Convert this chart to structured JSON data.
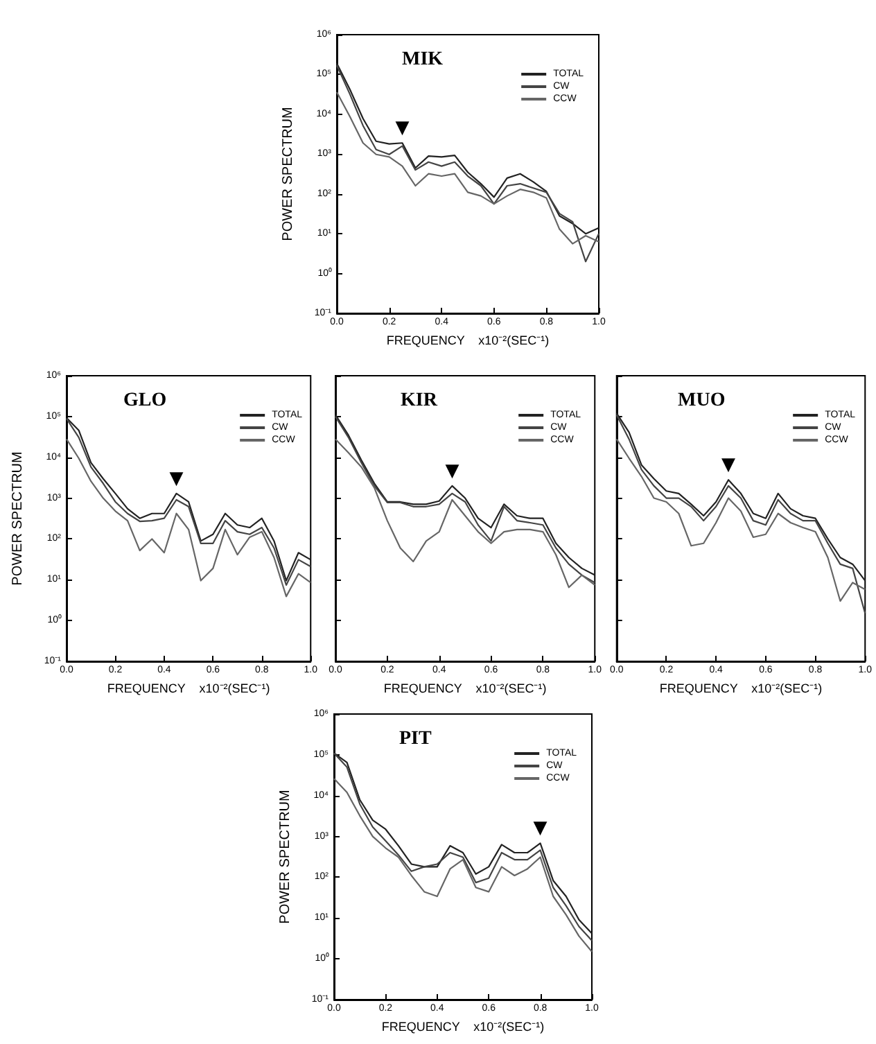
{
  "chart_data": [
    {
      "type": "line",
      "title": "MIK",
      "xlabel": "FREQUENCY    x10⁻²(SEC⁻¹)",
      "ylabel": "POWER SPECTRUM",
      "log": "y",
      "legend": "top right",
      "x": [
        0,
        0.05,
        0.1,
        0.15,
        0.2,
        0.25,
        0.3,
        0.35,
        0.4,
        0.45,
        0.5,
        0.55,
        0.6,
        0.65,
        0.7,
        0.75,
        0.8,
        0.85,
        0.9,
        0.95,
        1.0
      ],
      "xlim": [
        0,
        1
      ],
      "ylim": [
        0.1,
        1000000
      ],
      "xticks": [
        {
          "value": 0,
          "label": "0.0"
        },
        {
          "value": 0.2,
          "label": "0.2"
        },
        {
          "value": 0.4,
          "label": "0.4"
        },
        {
          "value": 0.6,
          "label": "0.6"
        },
        {
          "value": 0.8,
          "label": "0.8"
        },
        {
          "value": 1,
          "label": "1.0"
        }
      ],
      "yticks": [
        {
          "value": 0.1,
          "label": "10⁻¹"
        },
        {
          "value": 1,
          "label": "10⁰"
        },
        {
          "value": 10,
          "label": "10¹"
        },
        {
          "value": 100,
          "label": "10²"
        },
        {
          "value": 1000,
          "label": "10³"
        },
        {
          "value": 10000,
          "label": "10⁴"
        },
        {
          "value": 100000,
          "label": "10⁵"
        },
        {
          "value": 1000000,
          "label": "10⁶"
        }
      ],
      "annotations": [
        {
          "text": "▼",
          "x": 0.25,
          "y": 1900
        }
      ],
      "series": [
        {
          "name": "TOTAL",
          "color": "#222222",
          "values": [
            190000,
            42000,
            7800,
            2100,
            1800,
            1900,
            450,
            890,
            850,
            930,
            350,
            180,
            83,
            250,
            320,
            200,
            115,
            28,
            18,
            10,
            14
          ]
        },
        {
          "name": "CW",
          "color": "#444444",
          "values": [
            170000,
            32000,
            5200,
            1300,
            980,
            1600,
            400,
            630,
            500,
            630,
            280,
            160,
            56,
            160,
            180,
            140,
            110,
            32,
            20,
            2,
            10
          ]
        },
        {
          "name": "CCW",
          "color": "#666666",
          "values": [
            36000,
            8700,
            1900,
            980,
            850,
            500,
            160,
            320,
            280,
            320,
            110,
            89,
            56,
            89,
            130,
            110,
            79,
            13,
            5.6,
            8.9,
            6.3
          ]
        }
      ]
    },
    {
      "type": "line",
      "title": "GLO",
      "xlabel": "FREQUENCY    x10⁻²(SEC⁻¹)",
      "ylabel": "POWER SPECTRUM",
      "log": "y",
      "legend": "top right",
      "x": [
        0,
        0.05,
        0.1,
        0.15,
        0.2,
        0.25,
        0.3,
        0.35,
        0.4,
        0.45,
        0.5,
        0.55,
        0.6,
        0.65,
        0.7,
        0.75,
        0.8,
        0.85,
        0.9,
        0.95,
        1.0
      ],
      "xlim": [
        0,
        1
      ],
      "ylim": [
        0.1,
        1000000
      ],
      "xticks": [
        {
          "value": 0,
          "label": "0.0"
        },
        {
          "value": 0.2,
          "label": "0.2"
        },
        {
          "value": 0.4,
          "label": "0.4"
        },
        {
          "value": 0.6,
          "label": "0.6"
        },
        {
          "value": 0.8,
          "label": "0.8"
        },
        {
          "value": 1,
          "label": "1.0"
        }
      ],
      "yticks": [
        {
          "value": 0.1,
          "label": "10⁻¹"
        },
        {
          "value": 1,
          "label": "10⁰"
        },
        {
          "value": 10,
          "label": "10¹"
        },
        {
          "value": 100,
          "label": "10²"
        },
        {
          "value": 1000,
          "label": "10³"
        },
        {
          "value": 10000,
          "label": "10⁴"
        },
        {
          "value": 100000,
          "label": "10⁵"
        },
        {
          "value": 1000000,
          "label": "10⁶"
        }
      ],
      "annotations": [
        {
          "text": "▼",
          "x": 0.45,
          "y": 1300
        }
      ],
      "series": [
        {
          "name": "TOTAL",
          "color": "#222222",
          "values": [
            93000,
            46000,
            7400,
            3000,
            1300,
            550,
            320,
            420,
            420,
            1300,
            810,
            89,
            130,
            420,
            220,
            190,
            320,
            89,
            9.5,
            46,
            31
          ]
        },
        {
          "name": "CW",
          "color": "#444444",
          "values": [
            89000,
            31000,
            5800,
            2300,
            810,
            420,
            270,
            280,
            320,
            910,
            620,
            78,
            78,
            280,
            150,
            130,
            190,
            60,
            7.4,
            31,
            21
          ]
        },
        {
          "name": "CCW",
          "color": "#666666",
          "values": [
            28000,
            9500,
            2600,
            1000,
            480,
            280,
            52,
            100,
            46,
            420,
            170,
            9.5,
            19,
            170,
            41,
            110,
            150,
            35,
            3.9,
            14,
            8.5
          ]
        }
      ]
    },
    {
      "type": "line",
      "title": "KIR",
      "xlabel": "FREQUENCY    x10⁻²(SEC⁻¹)",
      "log": "y",
      "legend": "top right",
      "tick_labels": "x",
      "x": [
        0,
        0.05,
        0.1,
        0.15,
        0.2,
        0.25,
        0.3,
        0.35,
        0.4,
        0.45,
        0.5,
        0.55,
        0.6,
        0.65,
        0.7,
        0.75,
        0.8,
        0.85,
        0.9,
        0.95,
        1.0
      ],
      "xlim": [
        0,
        1
      ],
      "ylim": [
        0.1,
        1000000
      ],
      "xticks": [
        {
          "value": 0,
          "label": "0.0"
        },
        {
          "value": 0.2,
          "label": "0.2"
        },
        {
          "value": 0.4,
          "label": "0.4"
        },
        {
          "value": 0.6,
          "label": "0.6"
        },
        {
          "value": 0.8,
          "label": "0.8"
        },
        {
          "value": 1,
          "label": "1.0"
        }
      ],
      "yticks": [
        {
          "value": 0.1,
          "label": null
        },
        {
          "value": 1,
          "label": null
        },
        {
          "value": 10,
          "label": null
        },
        {
          "value": 100,
          "label": null
        },
        {
          "value": 1000,
          "label": null
        },
        {
          "value": 10000,
          "label": null
        },
        {
          "value": 100000,
          "label": null
        },
        {
          "value": 1000000,
          "label": null
        }
      ],
      "annotations": [
        {
          "text": "▼",
          "x": 0.45,
          "y": 2000
        }
      ],
      "series": [
        {
          "name": "TOTAL",
          "color": "#222222",
          "values": [
            110000,
            35000,
            8500,
            2300,
            810,
            810,
            710,
            710,
            850,
            2000,
            1000,
            320,
            190,
            710,
            370,
            320,
            320,
            78,
            35,
            19,
            13
          ]
        },
        {
          "name": "CW",
          "color": "#444444",
          "values": [
            100000,
            31000,
            7400,
            2000,
            780,
            780,
            620,
            620,
            710,
            1300,
            810,
            220,
            89,
            620,
            280,
            250,
            220,
            60,
            24,
            13,
            8.5
          ]
        },
        {
          "name": "CCW",
          "color": "#666666",
          "values": [
            28000,
            13000,
            5800,
            1800,
            280,
            60,
            28,
            89,
            150,
            910,
            370,
            150,
            78,
            150,
            170,
            170,
            150,
            41,
            6.5,
            13,
            7.4
          ]
        }
      ]
    },
    {
      "type": "line",
      "title": "MUO",
      "xlabel": "FREQUENCY    x10⁻²(SEC⁻¹)",
      "log": "y",
      "legend": "top right",
      "tick_labels": "x",
      "x": [
        0,
        0.05,
        0.1,
        0.15,
        0.2,
        0.25,
        0.3,
        0.35,
        0.4,
        0.45,
        0.5,
        0.55,
        0.6,
        0.65,
        0.7,
        0.75,
        0.8,
        0.85,
        0.9,
        0.95,
        1.0
      ],
      "xlim": [
        0,
        1
      ],
      "ylim": [
        0.1,
        1000000
      ],
      "xticks": [
        {
          "value": 0,
          "label": "0.0"
        },
        {
          "value": 0.2,
          "label": "0.2"
        },
        {
          "value": 0.4,
          "label": "0.4"
        },
        {
          "value": 0.6,
          "label": "0.6"
        },
        {
          "value": 0.8,
          "label": "0.8"
        },
        {
          "value": 1,
          "label": "1.0"
        }
      ],
      "yticks": [
        {
          "value": 0.1,
          "label": null
        },
        {
          "value": 1,
          "label": null
        },
        {
          "value": 10,
          "label": null
        },
        {
          "value": 100,
          "label": null
        },
        {
          "value": 1000,
          "label": null
        },
        {
          "value": 10000,
          "label": null
        },
        {
          "value": 100000,
          "label": null
        },
        {
          "value": 1000000,
          "label": null
        }
      ],
      "annotations": [
        {
          "text": "▼",
          "x": 0.45,
          "y": 2800
        }
      ],
      "series": [
        {
          "name": "TOTAL",
          "color": "#222222",
          "values": [
            120000,
            41000,
            6500,
            3000,
            1500,
            1300,
            710,
            370,
            810,
            2800,
            1300,
            420,
            320,
            1300,
            550,
            370,
            320,
            100,
            35,
            24,
            9.5
          ]
        },
        {
          "name": "CW",
          "color": "#444444",
          "values": [
            110000,
            28000,
            5000,
            2000,
            1000,
            1000,
            620,
            280,
            620,
            2000,
            1000,
            280,
            220,
            910,
            420,
            280,
            280,
            78,
            24,
            19,
            1.5
          ]
        },
        {
          "name": "CCW",
          "color": "#666666",
          "values": [
            28000,
            9500,
            3400,
            1000,
            810,
            420,
            68,
            78,
            250,
            1000,
            480,
            110,
            130,
            420,
            250,
            190,
            150,
            35,
            3,
            8.5,
            5.8
          ]
        }
      ]
    },
    {
      "type": "line",
      "title": "PIT",
      "xlabel": "FREQUENCY    x10⁻²(SEC⁻¹)",
      "ylabel": "POWER SPECTRUM",
      "log": "y",
      "legend": "top right",
      "x": [
        0,
        0.05,
        0.1,
        0.15,
        0.2,
        0.25,
        0.3,
        0.35,
        0.4,
        0.45,
        0.5,
        0.55,
        0.6,
        0.65,
        0.7,
        0.75,
        0.8,
        0.85,
        0.9,
        0.95,
        1.0
      ],
      "xlim": [
        0,
        1
      ],
      "ylim": [
        0.1,
        1000000
      ],
      "xticks": [
        {
          "value": 0,
          "label": "0.0"
        },
        {
          "value": 0.2,
          "label": "0.2"
        },
        {
          "value": 0.4,
          "label": "0.4"
        },
        {
          "value": 0.6,
          "label": "0.6"
        },
        {
          "value": 0.8,
          "label": "0.8"
        },
        {
          "value": 1,
          "label": "1.0"
        }
      ],
      "yticks": [
        {
          "value": 0.1,
          "label": "10⁻¹"
        },
        {
          "value": 1,
          "label": "10⁰"
        },
        {
          "value": 10,
          "label": "10¹"
        },
        {
          "value": 100,
          "label": "10²"
        },
        {
          "value": 1000,
          "label": "10³"
        },
        {
          "value": 10000,
          "label": "10⁴"
        },
        {
          "value": 100000,
          "label": "10⁵"
        },
        {
          "value": 1000000,
          "label": "10⁶"
        }
      ],
      "annotations": [
        {
          "text": "▼",
          "x": 0.8,
          "y": 680
        }
      ],
      "series": [
        {
          "name": "TOTAL",
          "color": "#222222",
          "values": [
            110000,
            65000,
            7900,
            2500,
            1500,
            590,
            210,
            180,
            180,
            590,
            400,
            120,
            180,
            630,
            400,
            400,
            680,
            83,
            34,
            9.1,
            4.2
          ]
        },
        {
          "name": "CW",
          "color": "#444444",
          "values": [
            110000,
            50000,
            6200,
            1700,
            780,
            350,
            140,
            180,
            210,
            400,
            310,
            74,
            95,
            400,
            270,
            270,
            460,
            56,
            20,
            6.2,
            2.8
          ]
        },
        {
          "name": "CCW",
          "color": "#666666",
          "values": [
            26000,
            12000,
            3200,
            1000,
            520,
            310,
            110,
            44,
            34,
            160,
            270,
            56,
            44,
            180,
            110,
            160,
            310,
            34,
            12,
            3.6,
            1.5
          ]
        }
      ]
    }
  ]
}
